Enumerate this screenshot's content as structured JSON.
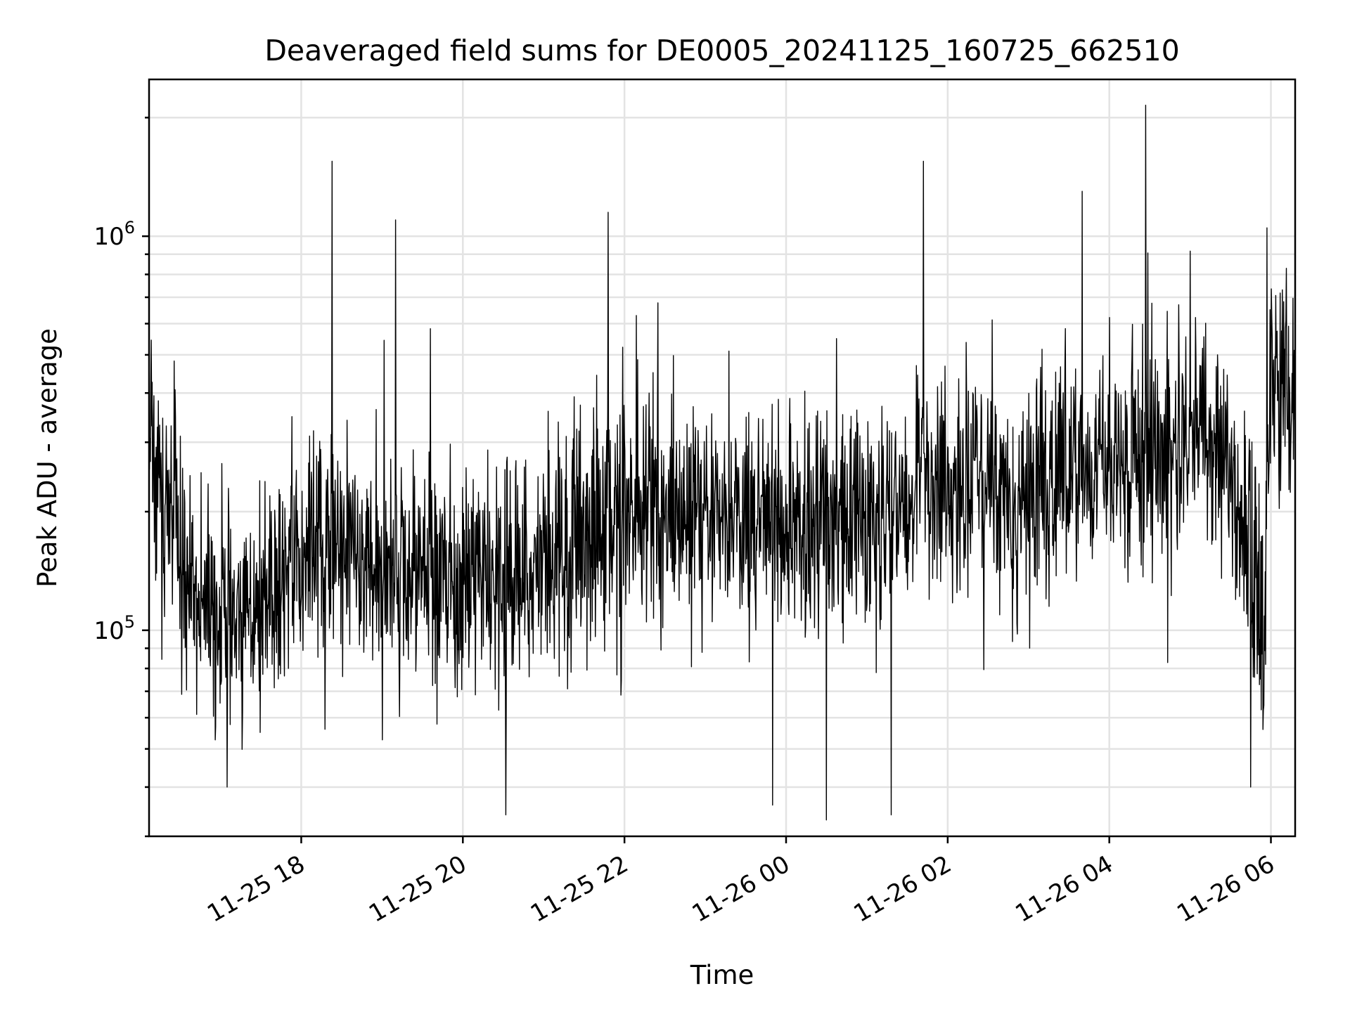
{
  "chart_data": {
    "type": "line",
    "title": "Deaveraged field sums for DE0005_20241125_160725_662510",
    "xlabel": "Time",
    "ylabel": "Peak ADU - average",
    "x_axis": {
      "kind": "datetime",
      "range": [
        "2024-11-25 16:07",
        "2024-11-26 06:18"
      ],
      "tick_labels": [
        "11-25 18",
        "11-25 20",
        "11-25 22",
        "11-26 00",
        "11-26 02",
        "11-26 04",
        "11-26 06"
      ],
      "tick_values": [
        "2024-11-25 18:00",
        "2024-11-25 20:00",
        "2024-11-25 22:00",
        "2024-11-26 00:00",
        "2024-11-26 02:00",
        "2024-11-26 04:00",
        "2024-11-26 06:00"
      ],
      "tick_rotation_deg": 30
    },
    "y_axis": {
      "scale": "log",
      "range": [
        30000,
        2500000
      ],
      "major_ticks": [
        {
          "base": "10",
          "exp": "5",
          "value": 100000
        },
        {
          "base": "10",
          "exp": "6",
          "value": 1000000
        }
      ]
    },
    "grid": true,
    "line_color": "#000000",
    "series": [
      {
        "baseline_trend": [
          {
            "x": "2024-11-25 16:07",
            "y": 300000
          },
          {
            "x": "2024-11-25 16:30",
            "y": 150000
          },
          {
            "x": "2024-11-25 17:00",
            "y": 110000
          },
          {
            "x": "2024-11-25 17:30",
            "y": 115000
          },
          {
            "x": "2024-11-25 18:00",
            "y": 150000
          },
          {
            "x": "2024-11-25 18:30",
            "y": 175000
          },
          {
            "x": "2024-11-25 19:00",
            "y": 150000
          },
          {
            "x": "2024-11-25 19:30",
            "y": 140000
          },
          {
            "x": "2024-11-25 20:00",
            "y": 130000
          },
          {
            "x": "2024-11-25 20:30",
            "y": 125000
          },
          {
            "x": "2024-11-25 21:00",
            "y": 150000
          },
          {
            "x": "2024-11-25 21:30",
            "y": 170000
          },
          {
            "x": "2024-11-25 22:00",
            "y": 200000
          },
          {
            "x": "2024-11-25 23:00",
            "y": 195000
          },
          {
            "x": "2024-11-26 00:00",
            "y": 185000
          },
          {
            "x": "2024-11-26 01:00",
            "y": 190000
          },
          {
            "x": "2024-11-26 01:30",
            "y": 185000
          },
          {
            "x": "2024-11-26 01:40",
            "y": 320000
          },
          {
            "x": "2024-11-26 02:00",
            "y": 230000
          },
          {
            "x": "2024-11-26 03:00",
            "y": 230000
          },
          {
            "x": "2024-11-26 04:00",
            "y": 260000
          },
          {
            "x": "2024-11-26 05:00",
            "y": 320000
          },
          {
            "x": "2024-11-26 05:30",
            "y": 260000
          },
          {
            "x": "2024-11-26 05:55",
            "y": 110000
          },
          {
            "x": "2024-11-26 06:00",
            "y": 450000
          },
          {
            "x": "2024-11-26 06:18",
            "y": 420000
          }
        ],
        "notable_spikes": [
          {
            "x": "2024-11-25 18:23",
            "y": 1550000
          },
          {
            "x": "2024-11-25 19:10",
            "y": 1100000
          },
          {
            "x": "2024-11-25 21:48",
            "y": 1150000
          },
          {
            "x": "2024-11-26 01:42",
            "y": 1550000
          },
          {
            "x": "2024-11-26 03:40",
            "y": 1300000
          },
          {
            "x": "2024-11-26 04:27",
            "y": 2150000
          },
          {
            "x": "2024-11-26 05:57",
            "y": 1050000
          }
        ],
        "notable_dips": [
          {
            "x": "2024-11-25 17:05",
            "y": 40000
          },
          {
            "x": "2024-11-25 20:32",
            "y": 34000
          },
          {
            "x": "2024-11-25 23:50",
            "y": 36000
          },
          {
            "x": "2024-11-26 00:30",
            "y": 33000
          },
          {
            "x": "2024-11-26 01:18",
            "y": 34000
          },
          {
            "x": "2024-11-26 05:45",
            "y": 40000
          }
        ]
      }
    ]
  }
}
